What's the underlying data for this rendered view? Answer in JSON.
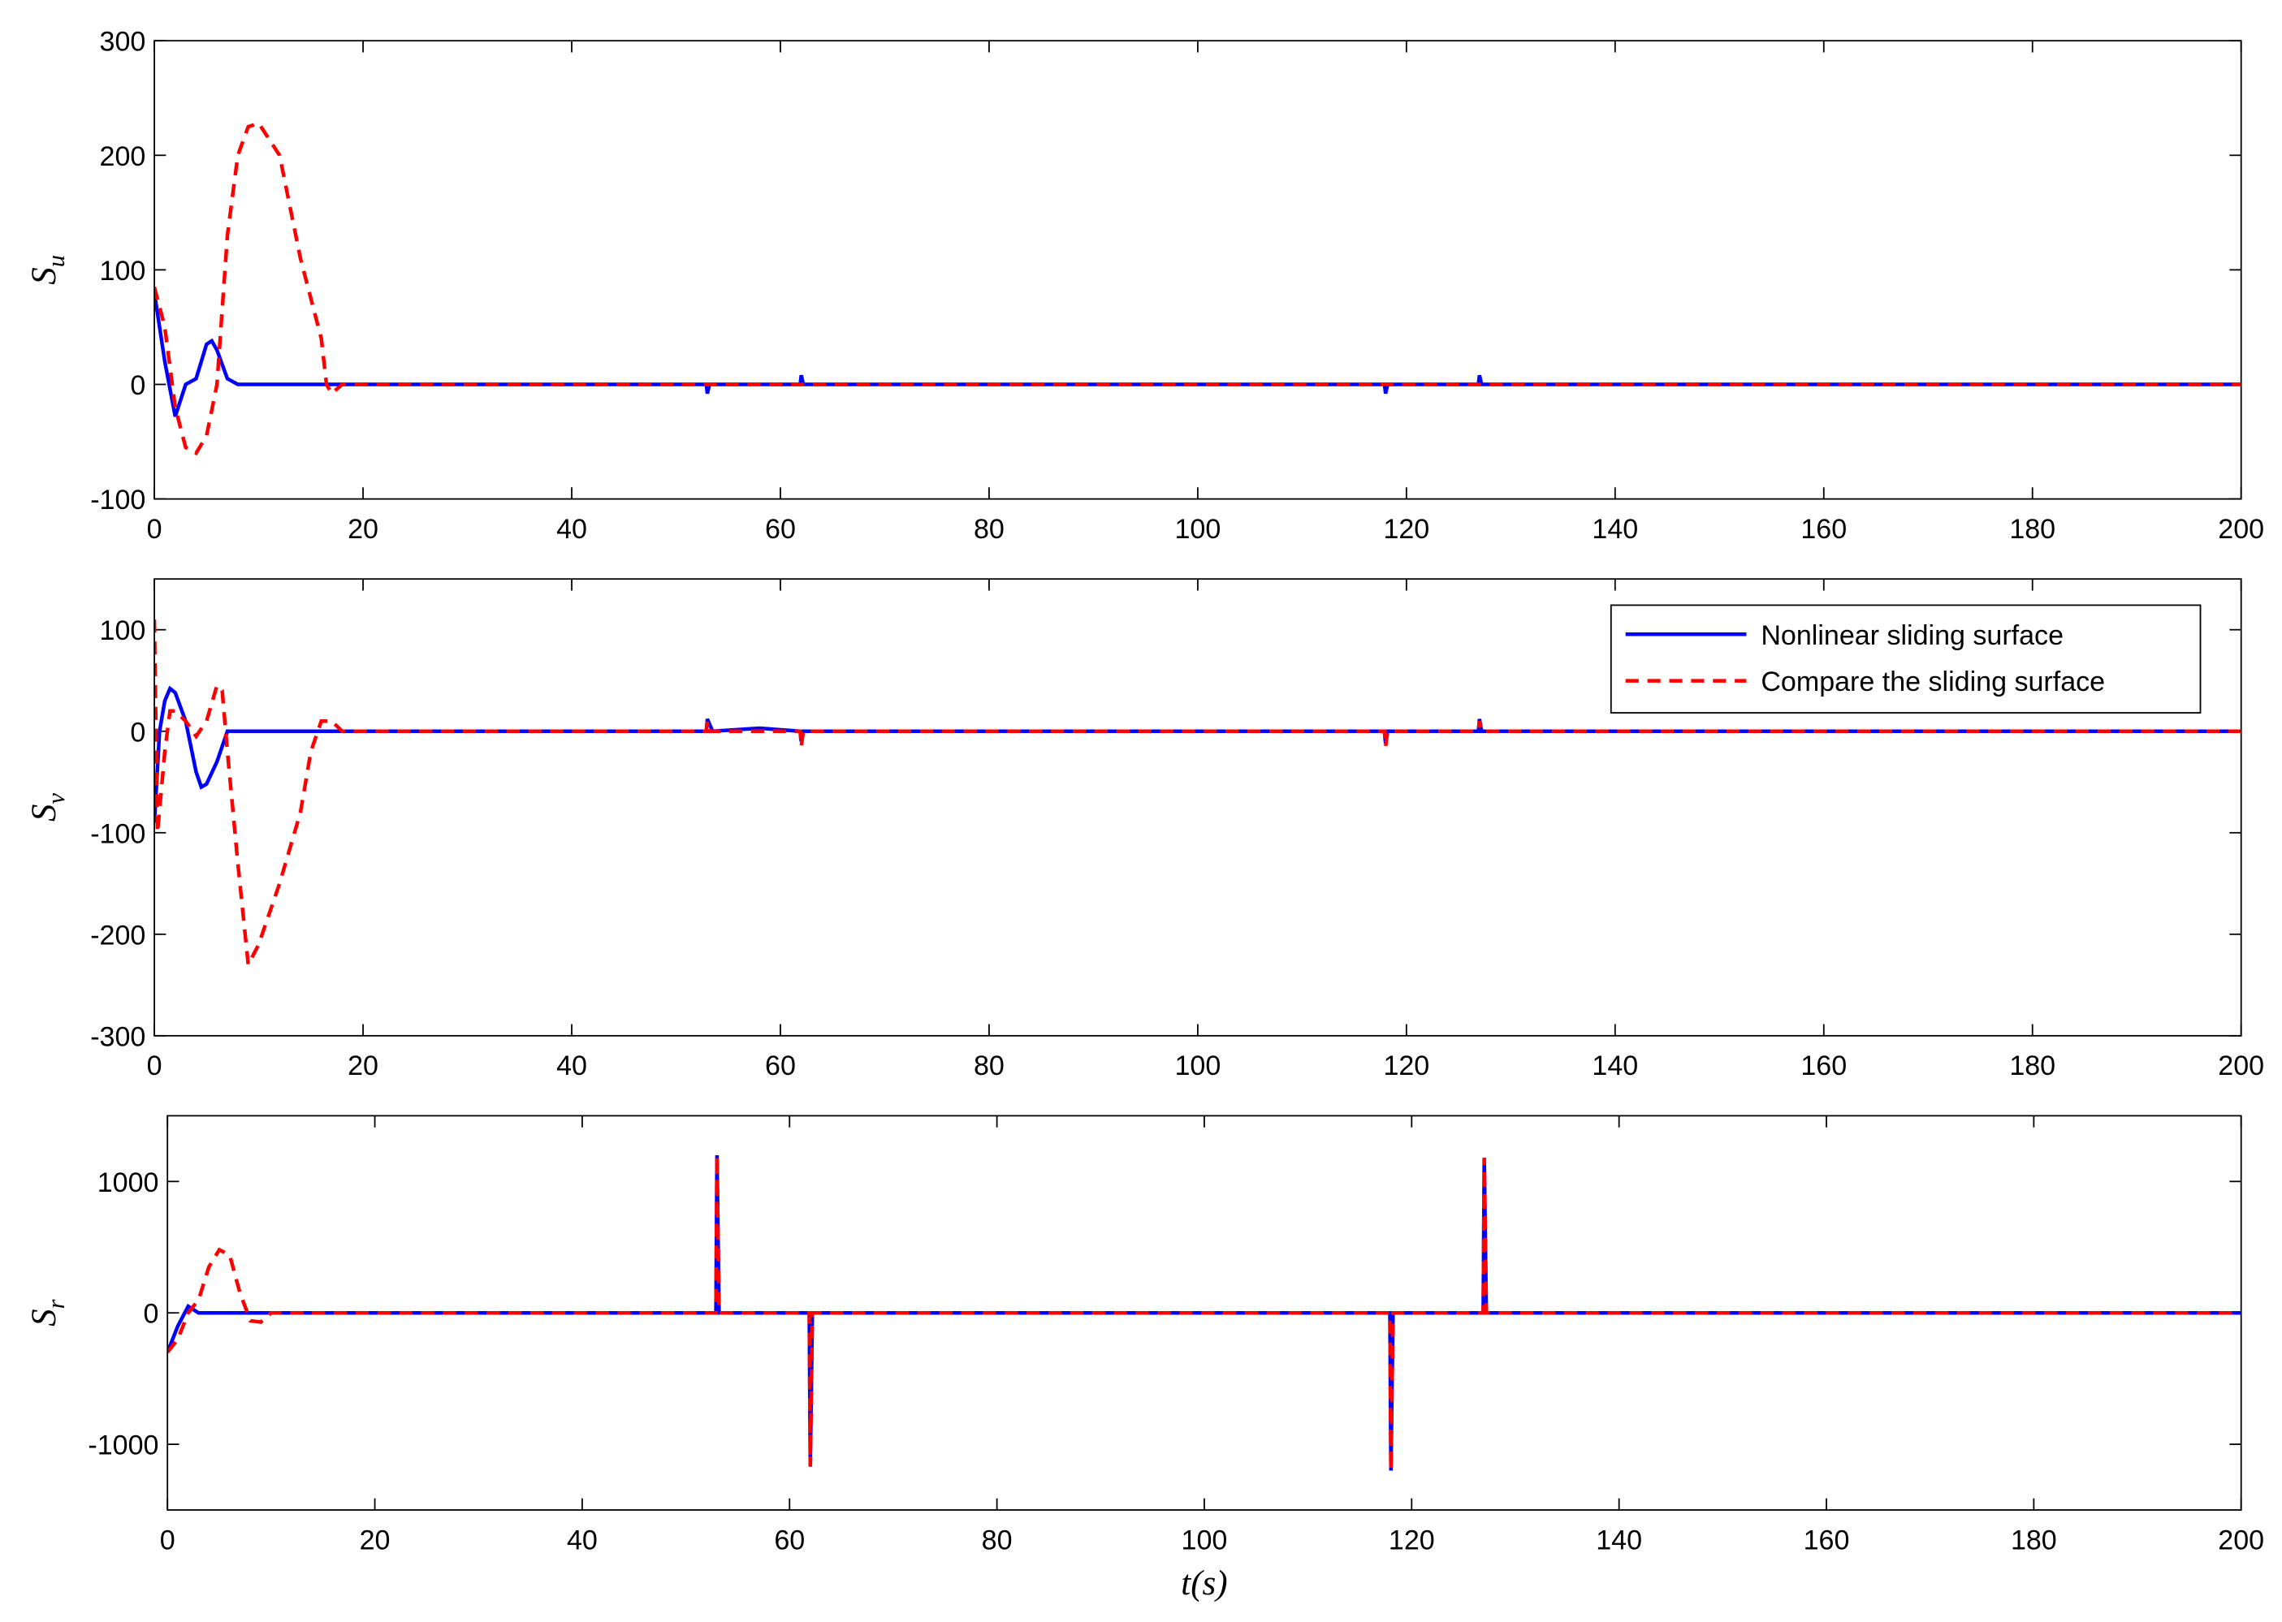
{
  "chart_data": [
    {
      "type": "line",
      "ylabel": "S",
      "ylabel_subscript": "u",
      "xlim": [
        0,
        200
      ],
      "xticks": [
        0,
        20,
        40,
        60,
        80,
        100,
        120,
        140,
        160,
        180,
        200
      ],
      "ylim": [
        -100,
        300
      ],
      "yticks": [
        -100,
        0,
        100,
        200,
        300
      ],
      "series": [
        {
          "color": "#0000ff",
          "style": "solid",
          "x": [
            0,
            1,
            2,
            3,
            4,
            5,
            5.5,
            6,
            7,
            8,
            20,
            52.9,
            53,
            53.2,
            61.9,
            62,
            62.2,
            117.9,
            118,
            118.2,
            126.9,
            127,
            127.2,
            200
          ],
          "values": [
            80,
            20,
            -28,
            0,
            5,
            35,
            38,
            30,
            5,
            0,
            0,
            0,
            -8,
            0,
            0,
            8,
            0,
            0,
            -8,
            0,
            0,
            8,
            0,
            0
          ]
        },
        {
          "color": "#ff0000",
          "style": "dashed",
          "x": [
            0,
            1,
            2,
            3,
            4,
            5,
            6,
            7,
            8,
            9,
            10,
            12,
            14,
            16,
            16.5,
            17,
            18,
            200
          ],
          "values": [
            85,
            50,
            -20,
            -55,
            -60,
            -45,
            0,
            130,
            200,
            225,
            228,
            200,
            110,
            40,
            0,
            -8,
            0,
            0
          ]
        }
      ]
    },
    {
      "type": "line",
      "ylabel": "S",
      "ylabel_subscript": "v",
      "xlim": [
        0,
        200
      ],
      "xticks": [
        0,
        20,
        40,
        60,
        80,
        100,
        120,
        140,
        160,
        180,
        200
      ],
      "ylim": [
        -300,
        150
      ],
      "yticks": [
        -300,
        -200,
        -100,
        0,
        100
      ],
      "legend": "upper right",
      "series": [
        {
          "name": "Nonlinear sliding surface",
          "color": "#0000ff",
          "style": "solid",
          "x": [
            0,
            0.5,
            1,
            1.5,
            2,
            3,
            4,
            4.5,
            5,
            6,
            7,
            20,
            52.9,
            53,
            53.5,
            58,
            61.9,
            62,
            62.2,
            117.9,
            118,
            118.2,
            126.9,
            127,
            127.2,
            200
          ],
          "values": [
            -90,
            0,
            30,
            42,
            38,
            10,
            -40,
            -55,
            -52,
            -30,
            0,
            0,
            0,
            12,
            0,
            3,
            0,
            -10,
            0,
            0,
            -12,
            0,
            0,
            12,
            0,
            0
          ]
        },
        {
          "name": "Compare the sliding surface",
          "color": "#ff0000",
          "style": "dashed",
          "x": [
            0,
            0.3,
            1,
            1.5,
            2,
            3,
            4,
            5,
            6,
            6.5,
            7,
            8,
            9,
            10,
            12,
            14,
            15,
            16,
            17,
            18,
            52.9,
            53,
            53.2,
            61.9,
            62,
            62.2,
            117.9,
            118,
            118.2,
            126.9,
            127,
            127.2,
            200
          ],
          "values": [
            110,
            -100,
            -20,
            20,
            20,
            10,
            -5,
            10,
            45,
            40,
            -20,
            -130,
            -230,
            -210,
            -150,
            -80,
            -20,
            10,
            10,
            0,
            0,
            10,
            0,
            0,
            -15,
            0,
            0,
            -15,
            0,
            0,
            10,
            0,
            0
          ]
        }
      ]
    },
    {
      "type": "line",
      "ylabel": "S",
      "ylabel_subscript": "r",
      "xlabel": "t(s)",
      "xlim": [
        0,
        200
      ],
      "xticks": [
        0,
        20,
        40,
        60,
        80,
        100,
        120,
        140,
        160,
        180,
        200
      ],
      "ylim": [
        -1500,
        1500
      ],
      "yticks": [
        -1000,
        0,
        1000
      ],
      "series": [
        {
          "color": "#0000ff",
          "style": "solid",
          "x": [
            0,
            1,
            2,
            3,
            52.9,
            53,
            53.2,
            61.9,
            62,
            62.2,
            117.9,
            118,
            118.2,
            126.9,
            127,
            127.2,
            200
          ],
          "values": [
            -300,
            -100,
            50,
            0,
            0,
            1200,
            0,
            0,
            -1170,
            0,
            0,
            -1200,
            0,
            0,
            1180,
            0,
            0
          ]
        },
        {
          "color": "#ff0000",
          "style": "dashed",
          "x": [
            0,
            1,
            2,
            3,
            4,
            5,
            6,
            7,
            8,
            9,
            10,
            52.9,
            53,
            53.2,
            61.9,
            62,
            62.2,
            117.9,
            118,
            118.2,
            126.9,
            127,
            127.2,
            200
          ],
          "values": [
            -300,
            -200,
            0,
            100,
            350,
            480,
            440,
            150,
            -60,
            -70,
            0,
            0,
            1200,
            0,
            0,
            -1170,
            0,
            0,
            -1200,
            0,
            0,
            1180,
            0,
            0
          ]
        }
      ]
    }
  ]
}
